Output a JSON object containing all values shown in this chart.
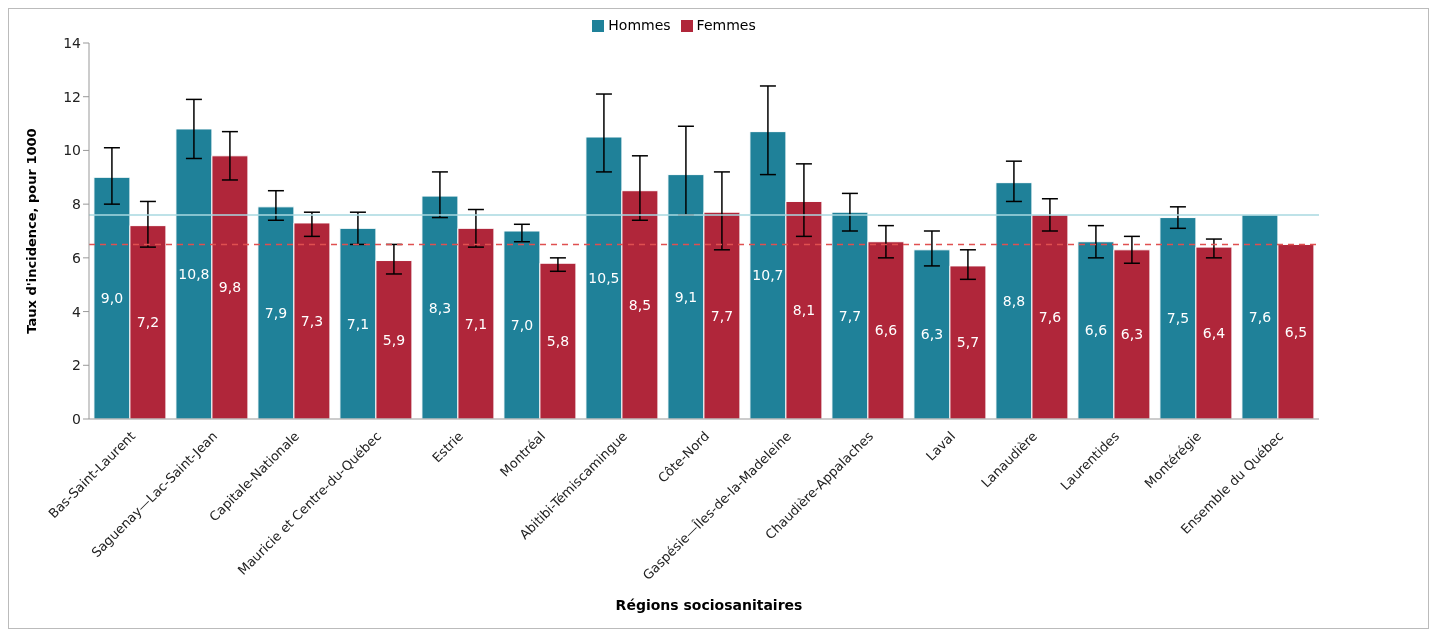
{
  "chart_data": {
    "type": "bar",
    "xlabel": "Régions sociosanitaires",
    "ylabel": "Taux d'incidence,  pour 1000",
    "categories": [
      "Bas-Saint-Laurent",
      "Saguenay—Lac-Saint-Jean",
      "Capitale-Nationale",
      "Mauricie et Centre-du-Québec",
      "Estrie",
      "Montréal",
      "Abitibi-Témiscamingue",
      "Côte-Nord",
      "Gaspésie—Îles-de-la-Madeleine",
      "Chaudière-Appalaches",
      "Laval",
      "Lanaudière",
      "Laurentides",
      "Montérégie",
      "Ensemble du Québec"
    ],
    "series": [
      {
        "name": "Hommes",
        "color": "#1f8199",
        "values": [
          9.0,
          10.8,
          7.9,
          7.1,
          8.3,
          7.0,
          10.5,
          9.1,
          10.7,
          7.7,
          6.3,
          8.8,
          6.6,
          7.5,
          7.6
        ],
        "value_labels": [
          "9,0",
          "10,8",
          "7,9",
          "7,1",
          "8,3",
          "7,0",
          "10,5",
          "9,1",
          "10,7",
          "7,7",
          "6,3",
          "8,8",
          "6,6",
          "7,5",
          "7,6"
        ],
        "errors": [
          [
            8.0,
            10.1
          ],
          [
            9.7,
            11.9
          ],
          [
            7.4,
            8.5
          ],
          [
            6.5,
            7.7
          ],
          [
            7.5,
            9.2
          ],
          [
            6.6,
            7.25
          ],
          [
            9.2,
            12.1
          ],
          [
            7.6,
            10.9
          ],
          [
            9.1,
            12.4
          ],
          [
            7.0,
            8.4
          ],
          [
            5.7,
            7.0
          ],
          [
            8.1,
            9.6
          ],
          [
            6.0,
            7.2
          ],
          [
            7.1,
            7.9
          ],
          null
        ]
      },
      {
        "name": "Femmes",
        "color": "#b0263a",
        "values": [
          7.2,
          9.8,
          7.3,
          5.9,
          7.1,
          5.8,
          8.5,
          7.7,
          8.1,
          6.6,
          5.7,
          7.6,
          6.3,
          6.4,
          6.5
        ],
        "value_labels": [
          "7,2",
          "9,8",
          "7,3",
          "5,9",
          "7,1",
          "5,8",
          "8,5",
          "7,7",
          "8,1",
          "6,6",
          "5,7",
          "7,6",
          "6,3",
          "6,4",
          "6,5"
        ],
        "errors": [
          [
            6.4,
            8.1
          ],
          [
            8.9,
            10.7
          ],
          [
            6.8,
            7.7
          ],
          [
            5.4,
            6.5
          ],
          [
            6.4,
            7.8
          ],
          [
            5.5,
            6.0
          ],
          [
            7.4,
            9.8
          ],
          [
            6.3,
            9.2
          ],
          [
            6.8,
            9.5
          ],
          [
            6.0,
            7.2
          ],
          [
            5.2,
            6.3
          ],
          [
            7.0,
            8.2
          ],
          [
            5.8,
            6.8
          ],
          [
            6.0,
            6.7
          ],
          null
        ]
      }
    ],
    "ylim": [
      0,
      14
    ],
    "yticks": [
      0,
      2,
      4,
      6,
      8,
      10,
      12,
      14
    ],
    "ref_lines": [
      {
        "axis": "y",
        "value": 7.6,
        "color": "#a8d8e0",
        "line_style": "solid"
      },
      {
        "axis": "y",
        "value": 6.5,
        "color": "#e05050",
        "line_style": "dashed"
      }
    ],
    "legend": "top"
  }
}
